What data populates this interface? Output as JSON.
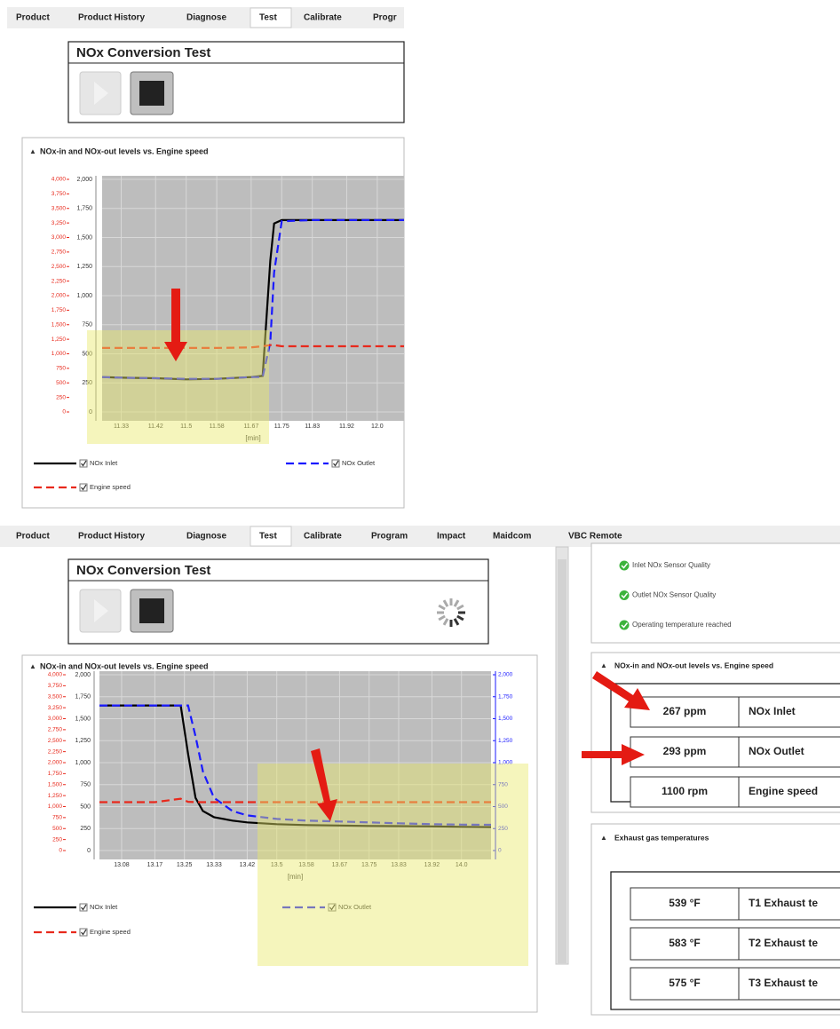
{
  "screens": [
    {
      "tabs": [
        {
          "label": "Product",
          "active": false
        },
        {
          "label": "Product History",
          "active": false
        },
        {
          "label": "Diagnose",
          "active": false
        },
        {
          "label": "Test",
          "active": true
        },
        {
          "label": "Calibrate",
          "active": false
        },
        {
          "label": "Progr",
          "active": false
        }
      ],
      "panel_title": "NOx Conversion Test"
    },
    {
      "tabs": [
        {
          "label": "Product",
          "active": false
        },
        {
          "label": "Product History",
          "active": false
        },
        {
          "label": "Diagnose",
          "active": false
        },
        {
          "label": "Test",
          "active": true
        },
        {
          "label": "Calibrate",
          "active": false
        },
        {
          "label": "Program",
          "active": false
        },
        {
          "label": "Impact",
          "active": false
        },
        {
          "label": "Maidcom",
          "active": false
        },
        {
          "label": "VBC Remote",
          "active": false
        }
      ],
      "panel_title": "NOx Conversion Test"
    }
  ],
  "chart_data": [
    {
      "type": "line",
      "title": "NOx-in and NOx-out levels vs. Engine speed",
      "xlabel": "[min]",
      "x": [
        11.28,
        11.33,
        11.42,
        11.5,
        11.58,
        11.67,
        11.7,
        11.72,
        11.73,
        11.75,
        11.83,
        11.92,
        12.0,
        12.07
      ],
      "series": [
        {
          "name": "NOx Inlet",
          "color": "#000000",
          "style": "solid",
          "axis": "y",
          "values": [
            300,
            295,
            290,
            280,
            285,
            300,
            310,
            1300,
            1620,
            1650,
            1650,
            1650,
            1650,
            1650
          ]
        },
        {
          "name": "NOx Outlet",
          "color": "#1a1aff",
          "style": "dashed",
          "axis": "y",
          "values": [
            300,
            295,
            290,
            285,
            285,
            300,
            300,
            600,
            1200,
            1640,
            1650,
            1650,
            1650,
            1650
          ]
        },
        {
          "name": "Engine speed",
          "color": "#e8291c",
          "style": "dashed",
          "axis": "y2",
          "values": [
            1100,
            1100,
            1100,
            1100,
            1100,
            1110,
            1130,
            1150,
            1150,
            1130,
            1130,
            1130,
            1130,
            1130
          ]
        }
      ],
      "xlim": [
        11.28,
        12.07
      ],
      "xticks": [
        11.33,
        11.42,
        11.5,
        11.58,
        11.67,
        11.75,
        11.83,
        11.92,
        {
          "value": 12,
          "label": "12.0"
        }
      ],
      "ylim": [
        0,
        2000
      ],
      "yticks": [
        0,
        250,
        500,
        750,
        {
          "value": 1000,
          "label": "1,000"
        },
        {
          "value": 1250,
          "label": "1,250"
        },
        {
          "value": 1500,
          "label": "1,500"
        },
        {
          "value": 1750,
          "label": "1,750"
        },
        {
          "value": 2000,
          "label": "2,000"
        }
      ],
      "y2lim": [
        0,
        4000
      ],
      "y2ticks": [
        0,
        250,
        500,
        750,
        {
          "value": 1000,
          "label": "1,000"
        },
        {
          "value": 1250,
          "label": "1,250"
        },
        {
          "value": 1500,
          "label": "1,500"
        },
        {
          "value": 1750,
          "label": "1,750"
        },
        {
          "value": 2000,
          "label": "2,000"
        },
        {
          "value": 2250,
          "label": "2,250"
        },
        {
          "value": 2500,
          "label": "2,500"
        },
        {
          "value": 2750,
          "label": "2,750"
        },
        {
          "value": 3000,
          "label": "3,000"
        },
        {
          "value": 3250,
          "label": "3,250"
        },
        {
          "value": 3500,
          "label": "3,500"
        },
        {
          "value": 3750,
          "label": "3,750"
        },
        {
          "value": 4000,
          "label": "4,000"
        }
      ],
      "y2color": "#e8291c",
      "grid": true
    },
    {
      "type": "line",
      "title": "NOx-in and NOx-out levels vs. Engine speed",
      "xlabel": "[min]",
      "x": [
        13.02,
        13.08,
        13.17,
        13.24,
        13.26,
        13.28,
        13.3,
        13.33,
        13.38,
        13.42,
        13.5,
        13.58,
        13.67,
        13.75,
        13.83,
        13.92,
        14.0,
        14.08
      ],
      "series": [
        {
          "name": "NOx Inlet",
          "color": "#000000",
          "style": "solid",
          "axis": "y",
          "values": [
            1650,
            1650,
            1650,
            1650,
            1100,
            600,
            450,
            380,
            340,
            320,
            300,
            290,
            285,
            280,
            278,
            275,
            270,
            267
          ]
        },
        {
          "name": "NOx Outlet",
          "color": "#1a1aff",
          "style": "dashed",
          "axis": "y3",
          "values": [
            1650,
            1650,
            1650,
            1650,
            1650,
            1300,
            900,
            600,
            450,
            400,
            360,
            340,
            330,
            320,
            310,
            300,
            295,
            293
          ]
        },
        {
          "name": "Engine speed",
          "color": "#e8291c",
          "style": "dashed",
          "axis": "y2",
          "values": [
            1100,
            1100,
            1100,
            1180,
            1110,
            1100,
            1100,
            1100,
            1100,
            1100,
            1100,
            1100,
            1100,
            1100,
            1100,
            1100,
            1100,
            1100
          ]
        }
      ],
      "xlim": [
        13.02,
        14.08
      ],
      "xticks": [
        13.08,
        13.17,
        13.25,
        13.33,
        13.42,
        13.5,
        13.58,
        13.67,
        13.75,
        13.83,
        13.92,
        {
          "value": 14,
          "label": "14.0"
        }
      ],
      "ylim": [
        0,
        2000
      ],
      "yticks": [
        0,
        250,
        500,
        750,
        {
          "value": 1000,
          "label": "1,000"
        },
        {
          "value": 1250,
          "label": "1,250"
        },
        {
          "value": 1500,
          "label": "1,500"
        },
        {
          "value": 1750,
          "label": "1,750"
        },
        {
          "value": 2000,
          "label": "2,000"
        }
      ],
      "y2lim": [
        0,
        4000
      ],
      "y2ticks": [
        0,
        250,
        500,
        750,
        {
          "value": 1000,
          "label": "1,000"
        },
        {
          "value": 1250,
          "label": "1,250"
        },
        {
          "value": 1500,
          "label": "1,500"
        },
        {
          "value": 1750,
          "label": "1,750"
        },
        {
          "value": 2000,
          "label": "2,000"
        },
        {
          "value": 2250,
          "label": "2,250"
        },
        {
          "value": 2500,
          "label": "2,500"
        },
        {
          "value": 2750,
          "label": "2,750"
        },
        {
          "value": 3000,
          "label": "3,000"
        },
        {
          "value": 3250,
          "label": "3,250"
        },
        {
          "value": 3500,
          "label": "3,500"
        },
        {
          "value": 3750,
          "label": "3,750"
        },
        {
          "value": 4000,
          "label": "4,000"
        }
      ],
      "y2color": "#e8291c",
      "y3lim": [
        0,
        2000
      ],
      "y3ticks": [
        0,
        250,
        500,
        750,
        {
          "value": 1000,
          "label": "1,000"
        },
        {
          "value": 1250,
          "label": "1,250"
        },
        {
          "value": 1500,
          "label": "1,500"
        },
        {
          "value": 1750,
          "label": "1,750"
        },
        {
          "value": 2000,
          "label": "2,000"
        }
      ],
      "y3color": "#1a1aff",
      "grid": true
    }
  ],
  "status_items": [
    "Inlet NOx Sensor Quality",
    "Outlet NOx Sensor Quality",
    "Operating temperature reached"
  ],
  "levels_panel": {
    "title": "NOx-in and NOx-out levels vs. Engine speed",
    "rows": [
      {
        "value": "267 ppm",
        "label": "NOx Inlet"
      },
      {
        "value": "293 ppm",
        "label": "NOx Outlet"
      },
      {
        "value": "1100 rpm",
        "label": "Engine speed"
      }
    ]
  },
  "temperatures_panel": {
    "title": "Exhaust gas temperatures",
    "rows": [
      {
        "value": "539 °F",
        "label": "T1 Exhaust te"
      },
      {
        "value": "583 °F",
        "label": "T2 Exhaust te"
      },
      {
        "value": "575 °F",
        "label": "T3 Exhaust te"
      }
    ]
  }
}
